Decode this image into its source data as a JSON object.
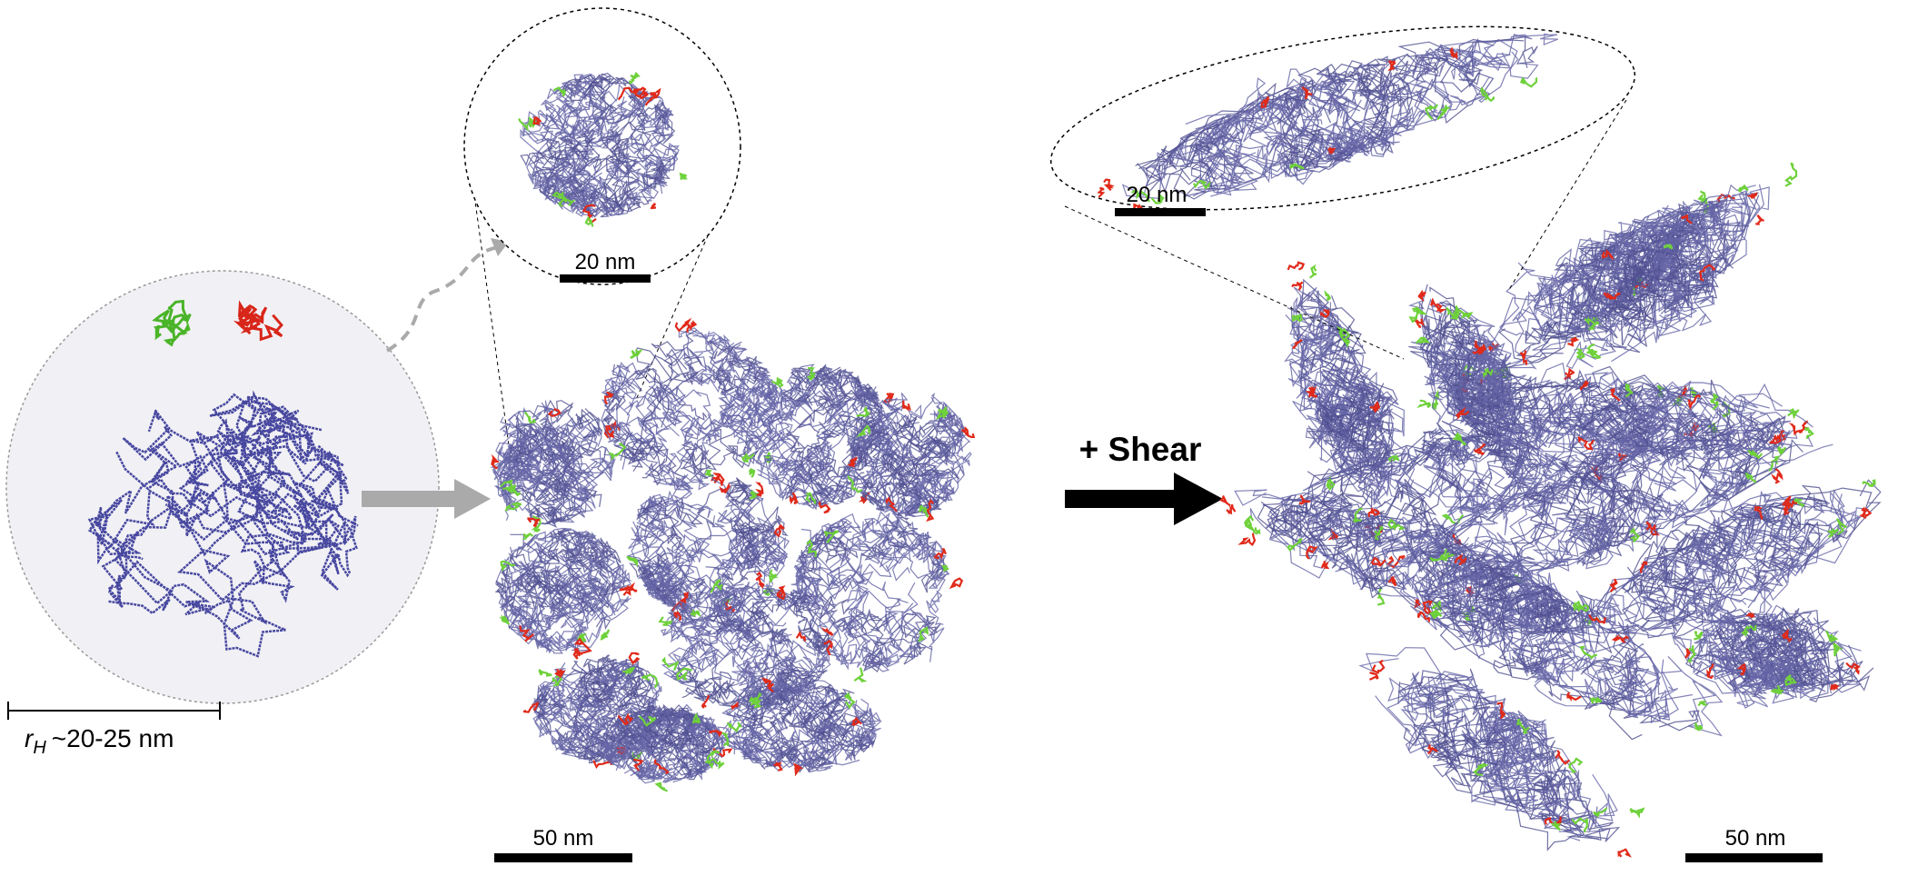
{
  "left": {
    "radius_label": {
      "symbol": "r",
      "subscript": "H",
      "text": "~20-25 nm"
    }
  },
  "middle": {
    "zoom_scale_bar": "20 nm",
    "scale_bar": "50 nm"
  },
  "arrow_label": "+ Shear",
  "right": {
    "zoom_scale_bar": "20 nm",
    "scale_bar": "50 nm"
  }
}
